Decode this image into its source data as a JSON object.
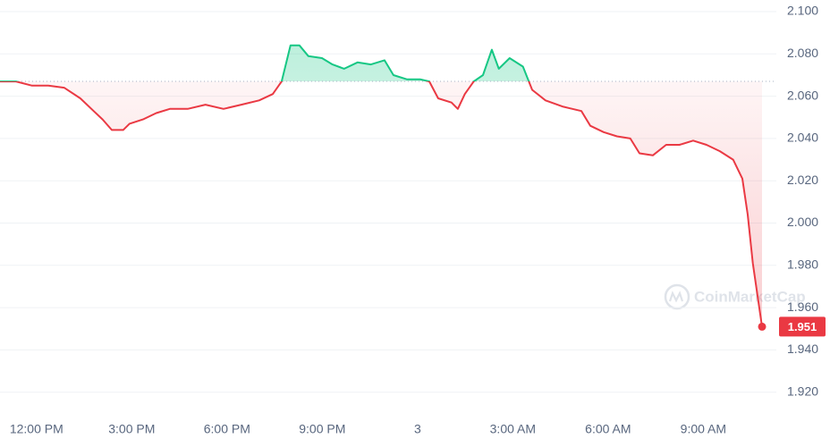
{
  "chart_data": {
    "type": "line",
    "x": [
      10.85,
      11.35,
      11.86,
      12.37,
      12.87,
      13.38,
      13.8,
      14.08,
      14.37,
      14.73,
      14.93,
      15.35,
      15.77,
      16.2,
      16.76,
      17.32,
      17.89,
      18.45,
      19.01,
      19.44,
      19.72,
      20.0,
      20.28,
      20.56,
      20.99,
      21.32,
      21.69,
      22.11,
      22.53,
      22.96,
      23.24,
      23.66,
      24.08,
      24.37,
      24.65,
      25.07,
      25.27,
      25.49,
      25.77,
      26.06,
      26.34,
      26.56,
      26.9,
      27.32,
      27.61,
      28.03,
      28.59,
      29.16,
      29.44,
      29.86,
      30.28,
      30.7,
      30.99,
      31.41,
      31.83,
      32.25,
      32.68,
      33.1,
      33.52,
      33.94,
      34.23,
      34.4,
      34.56,
      34.85
    ],
    "values": [
      2.067,
      2.067,
      2.065,
      2.065,
      2.064,
      2.059,
      2.053,
      2.049,
      2.044,
      2.044,
      2.047,
      2.049,
      2.052,
      2.054,
      2.054,
      2.056,
      2.054,
      2.056,
      2.058,
      2.061,
      2.067,
      2.084,
      2.084,
      2.079,
      2.078,
      2.075,
      2.073,
      2.076,
      2.075,
      2.077,
      2.07,
      2.068,
      2.068,
      2.067,
      2.059,
      2.057,
      2.054,
      2.061,
      2.067,
      2.07,
      2.082,
      2.073,
      2.078,
      2.074,
      2.063,
      2.058,
      2.055,
      2.053,
      2.046,
      2.043,
      2.041,
      2.04,
      2.033,
      2.032,
      2.037,
      2.037,
      2.039,
      2.037,
      2.034,
      2.03,
      2.021,
      2.004,
      1.981,
      1.951
    ],
    "baseline": 2.067,
    "up_color": "#16c784",
    "down_color": "#ea3943",
    "xlim": [
      10.85,
      35.3
    ],
    "xticks": [
      {
        "value": 12,
        "label": "12:00 PM"
      },
      {
        "value": 15,
        "label": "3:00 PM"
      },
      {
        "value": 18,
        "label": "6:00 PM"
      },
      {
        "value": 21,
        "label": "9:00 PM"
      },
      {
        "value": 24,
        "label": "3"
      },
      {
        "value": 27,
        "label": "3:00 AM"
      },
      {
        "value": 30,
        "label": "6:00 AM"
      },
      {
        "value": 33,
        "label": "9:00 AM"
      }
    ],
    "ylim": [
      1.911,
      2.1055
    ],
    "yticks": [
      {
        "value": 1.92,
        "label": "1.920"
      },
      {
        "value": 1.94,
        "label": "1.940"
      },
      {
        "value": 1.96,
        "label": "1.960"
      },
      {
        "value": 1.98,
        "label": "1.980"
      },
      {
        "value": 2.0,
        "label": "2.000"
      },
      {
        "value": 2.02,
        "label": "2.020"
      },
      {
        "value": 2.04,
        "label": "2.040"
      },
      {
        "value": 2.06,
        "label": "2.060"
      },
      {
        "value": 2.08,
        "label": "2.080"
      },
      {
        "value": 2.1,
        "label": "2.100"
      }
    ],
    "grid": true,
    "watermark": "CoinMarketCap"
  }
}
